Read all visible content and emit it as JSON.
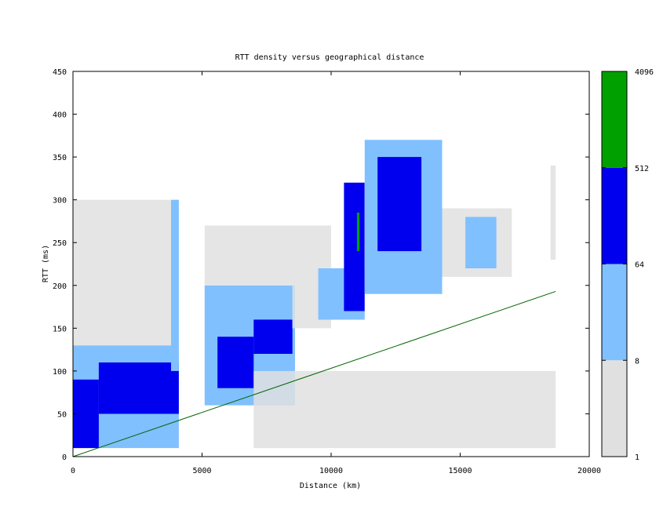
{
  "chart_data": {
    "type": "heatmap",
    "title": "RTT density versus geographical distance",
    "xlabel": "Distance (km)",
    "ylabel": "RTT (ms)",
    "xlim": [
      0,
      20000
    ],
    "ylim": [
      0,
      450
    ],
    "x_ticks": [
      0,
      5000,
      10000,
      15000,
      20000
    ],
    "y_ticks": [
      0,
      50,
      100,
      150,
      200,
      250,
      300,
      350,
      400,
      450
    ],
    "colorbar": {
      "scale": "log",
      "ticks": [
        "1",
        "8",
        "64",
        "512",
        "4096"
      ],
      "bands": [
        {
          "from": 1,
          "to": 8,
          "color": "#e0e0e0"
        },
        {
          "from": 8,
          "to": 64,
          "color": "#80c0ff"
        },
        {
          "from": 64,
          "to": 512,
          "color": "#0000ee"
        },
        {
          "from": 512,
          "to": 4096,
          "color": "#00a000"
        }
      ]
    },
    "reference_line": {
      "color": "#006400",
      "points": [
        [
          0,
          0
        ],
        [
          18700,
          193
        ]
      ]
    },
    "density_regions": [
      {
        "x_from": 0,
        "x_to": 4100,
        "y_from": 10,
        "y_to": 130,
        "level": 2
      },
      {
        "x_from": 0,
        "x_to": 1000,
        "y_from": 10,
        "y_to": 90,
        "level": 3
      },
      {
        "x_from": 1000,
        "x_to": 4100,
        "y_from": 50,
        "y_to": 110,
        "level": 3
      },
      {
        "x_from": 0,
        "x_to": 4100,
        "y_from": 130,
        "y_to": 300,
        "level": 1
      },
      {
        "x_from": 3800,
        "x_to": 4100,
        "y_from": 100,
        "y_to": 300,
        "level": 2
      },
      {
        "x_from": 5100,
        "x_to": 8600,
        "y_from": 60,
        "y_to": 200,
        "level": 2
      },
      {
        "x_from": 5600,
        "x_to": 7000,
        "y_from": 80,
        "y_to": 140,
        "level": 3
      },
      {
        "x_from": 7000,
        "x_to": 8500,
        "y_from": 120,
        "y_to": 160,
        "level": 3
      },
      {
        "x_from": 5100,
        "x_to": 10000,
        "y_from": 200,
        "y_to": 270,
        "level": 1
      },
      {
        "x_from": 8500,
        "x_to": 10000,
        "y_from": 150,
        "y_to": 200,
        "level": 1
      },
      {
        "x_from": 9500,
        "x_to": 11300,
        "y_from": 160,
        "y_to": 220,
        "level": 2
      },
      {
        "x_from": 10500,
        "x_to": 11300,
        "y_from": 170,
        "y_to": 320,
        "level": 3
      },
      {
        "x_from": 11000,
        "x_to": 11100,
        "y_from": 240,
        "y_to": 285,
        "level": 4
      },
      {
        "x_from": 11300,
        "x_to": 14300,
        "y_from": 190,
        "y_to": 370,
        "level": 2
      },
      {
        "x_from": 11800,
        "x_to": 13500,
        "y_from": 240,
        "y_to": 350,
        "level": 3
      },
      {
        "x_from": 14300,
        "x_to": 17000,
        "y_from": 210,
        "y_to": 290,
        "level": 1
      },
      {
        "x_from": 15200,
        "x_to": 16400,
        "y_from": 220,
        "y_to": 280,
        "level": 2
      },
      {
        "x_from": 18500,
        "x_to": 18700,
        "y_from": 230,
        "y_to": 340,
        "level": 1
      },
      {
        "x_from": 7000,
        "x_to": 18700,
        "y_from": 10,
        "y_to": 100,
        "level": 1
      }
    ]
  }
}
